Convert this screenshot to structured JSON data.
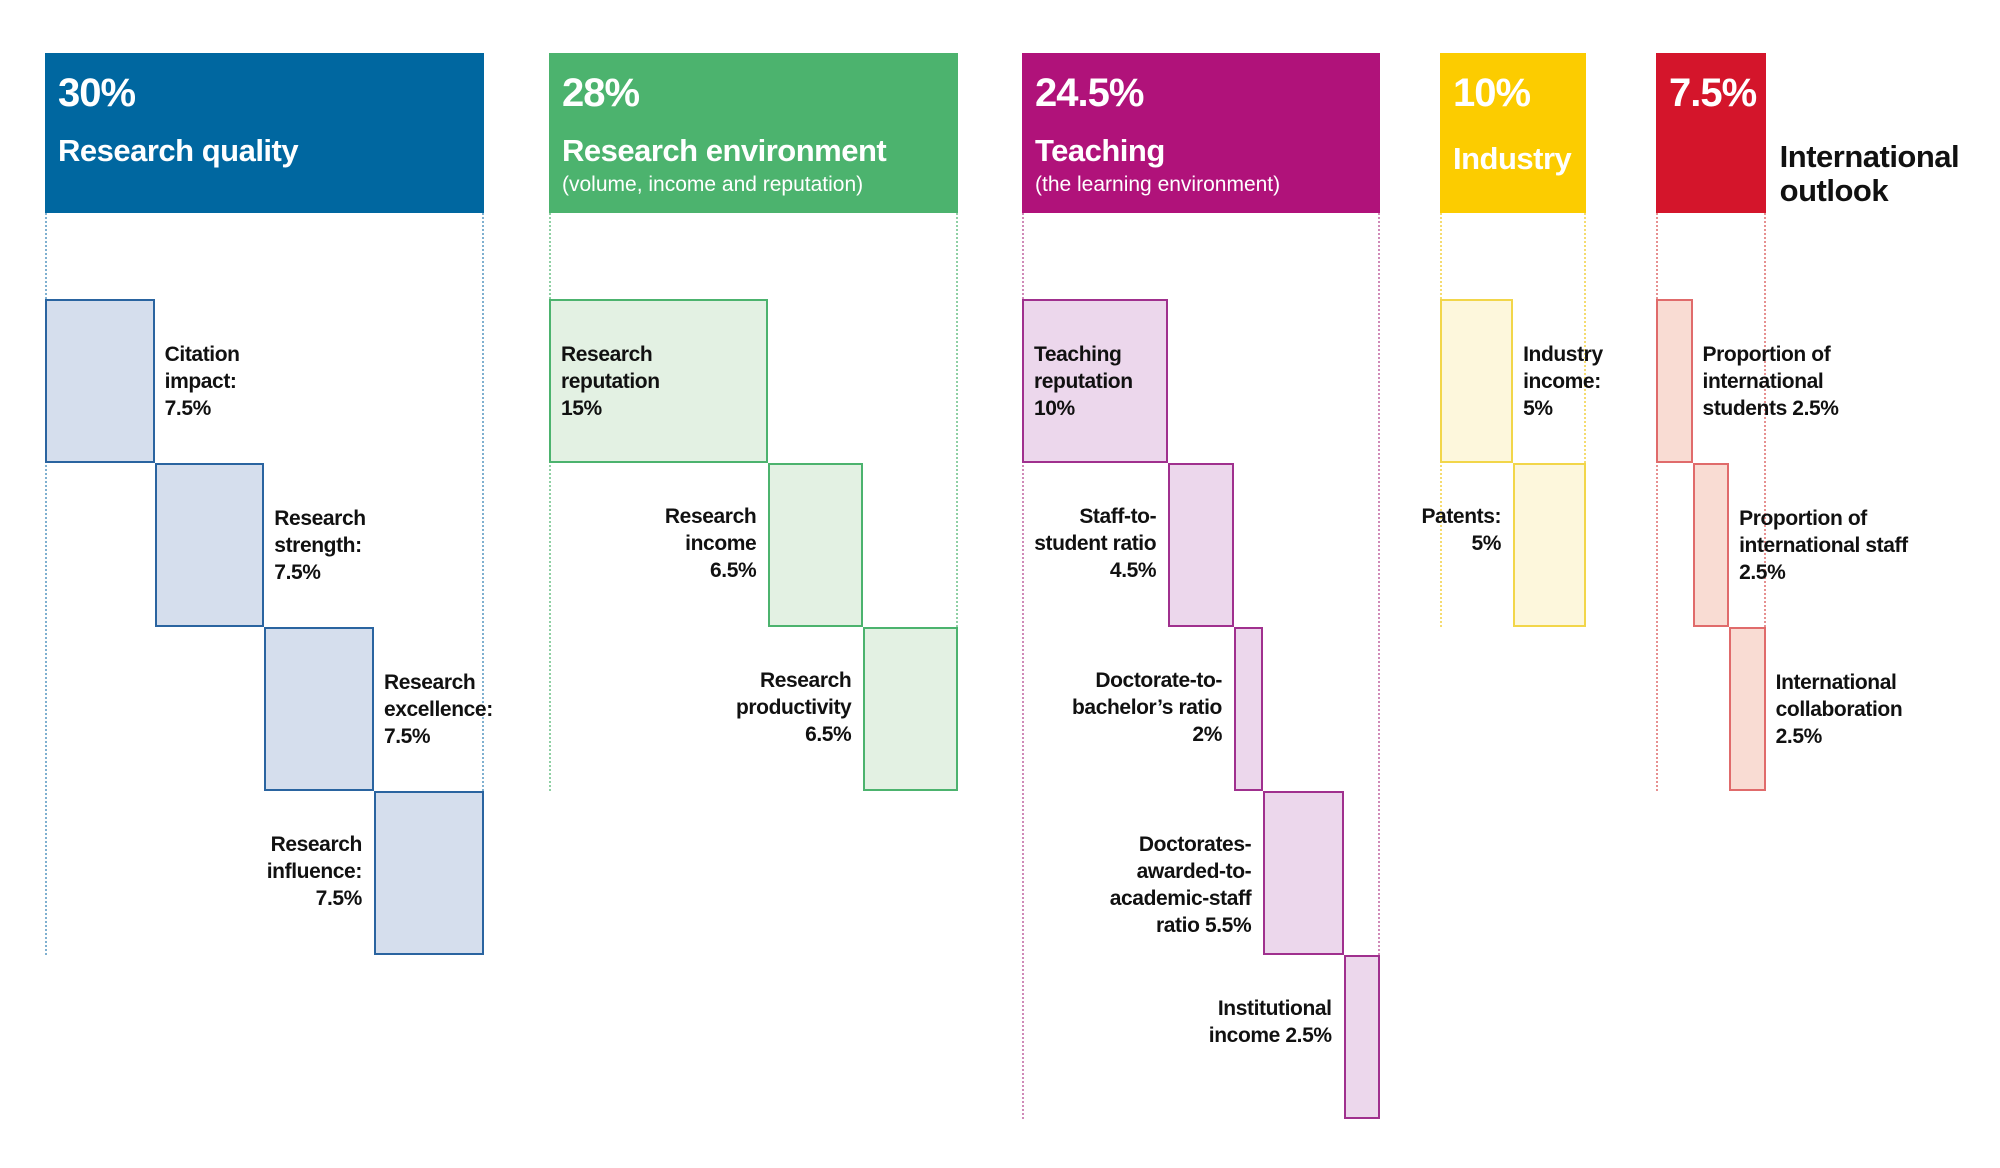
{
  "pillars": [
    {
      "percent": {
        "value": 30,
        "label": "30%"
      },
      "title": "Research quality",
      "items": [
        {
          "label": "Citation impact:",
          "value": 7.5,
          "value_label": "7.5%"
        },
        {
          "label": "Research strength:",
          "value": 7.5,
          "value_label": "7.5%"
        },
        {
          "label": "Research excellence:",
          "value": 7.5,
          "value_label": "7.5%"
        },
        {
          "label": "Research influence:",
          "value": 7.5,
          "value_label": "7.5%"
        }
      ]
    },
    {
      "percent": {
        "value": 28,
        "label": "28%"
      },
      "title": "Research environment",
      "subtitle": "(volume, income and reputation)",
      "items": [
        {
          "label": "Research reputation",
          "value": 15,
          "value_label": "15%"
        },
        {
          "label": "Research income",
          "value": 6.5,
          "value_label": "6.5%"
        },
        {
          "label": "Research productivity",
          "value": 6.5,
          "value_label": "6.5%"
        }
      ]
    },
    {
      "percent": {
        "value": 24.5,
        "label": "24.5%"
      },
      "title": "Teaching",
      "subtitle": "(the learning environment)",
      "items": [
        {
          "label": "Teaching reputation",
          "value": 10,
          "value_label": "10%"
        },
        {
          "label": "Staff-to-student ratio",
          "value": 4.5,
          "value_label": "4.5%"
        },
        {
          "label": "Doctorate-to-bachelor’s ratio",
          "value": 2,
          "value_label": "2%"
        },
        {
          "label": "Doctorates-awarded-to-academic-staff ratio",
          "value": 5.5,
          "value_label": "5.5%"
        },
        {
          "label": "Institutional income",
          "value": 2.5,
          "value_label": "2.5%"
        }
      ]
    },
    {
      "percent": {
        "value": 10,
        "label": "10%"
      },
      "title": "Industry",
      "items": [
        {
          "label": "Industry income:",
          "value": 5,
          "value_label": "5%"
        },
        {
          "label": "Patents:",
          "value": 5,
          "value_label": "5%"
        }
      ]
    },
    {
      "percent": {
        "value": 7.5,
        "label": "7.5%"
      },
      "title": "International outlook",
      "items": [
        {
          "label": "Proportion of international students",
          "value": 2.5,
          "value_label": "2.5%"
        },
        {
          "label": "Proportion of international staff",
          "value": 2.5,
          "value_label": "2.5%"
        },
        {
          "label": "International collaboration",
          "value": 2.5,
          "value_label": "2.5%"
        }
      ]
    }
  ]
}
